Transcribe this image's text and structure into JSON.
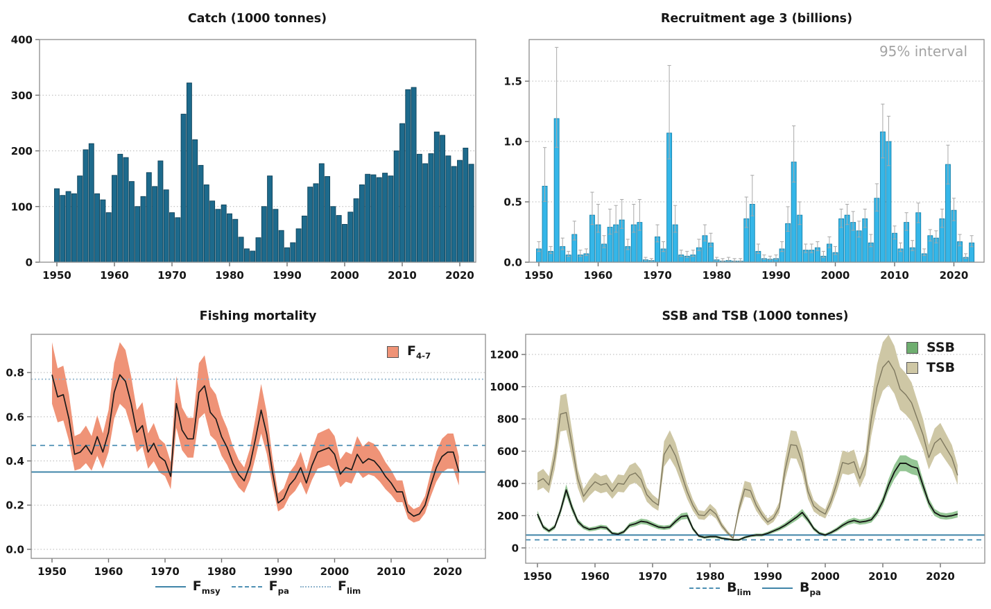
{
  "colors": {
    "catch_bar": "#1d6a8c",
    "catch_edge": "#0f4259",
    "rec_bar": "#35b6e8",
    "rec_edge": "#1583ad",
    "whisker": "#a8a8a8",
    "f_band": "#ef9377",
    "black_line": "#1a1a1a",
    "ssb_band": "#95c695",
    "ssb_swatch": "#6fae70",
    "ssb_line": "#111111",
    "tsb_band": "#cec7a5",
    "tsb_line": "#7e785f",
    "tsb_swatch": "#cec7a5",
    "ref_solid": "#3f84a8",
    "ref_dashed": "#4d8fb3",
    "ref_dotted": "#8fb4cc",
    "grid": "#b5b5b5",
    "frame": "#8c8c8c",
    "tick": "#6e6e6e",
    "muted_text": "#a3a3a3"
  },
  "chart_data": [
    {
      "id": "catch",
      "type": "bar",
      "dom": "svg-catch",
      "title": "Catch (1000 tonnes)",
      "x_start_year": 1950,
      "xticks": [
        1950,
        1960,
        1970,
        1980,
        1990,
        2000,
        2010,
        2020
      ],
      "yticks": [
        0,
        100,
        200,
        300,
        400
      ],
      "ytick_labels": [
        "0",
        "100",
        "200",
        "300",
        "400"
      ],
      "ylim": [
        0,
        400
      ],
      "values": [
        132,
        120,
        127,
        123,
        155,
        202,
        213,
        123,
        112,
        89,
        156,
        194,
        188,
        145,
        100,
        118,
        161,
        136,
        182,
        130,
        89,
        80,
        266,
        322,
        220,
        174,
        139,
        110,
        95,
        103,
        87,
        77,
        45,
        24,
        20,
        44,
        100,
        155,
        95,
        57,
        26,
        35,
        60,
        83,
        135,
        141,
        177,
        154,
        100,
        84,
        68,
        90,
        114,
        139,
        158,
        157,
        152,
        160,
        155,
        200,
        249,
        310,
        314,
        194,
        177,
        195,
        234,
        228,
        191,
        172,
        183,
        205,
        176
      ]
    },
    {
      "id": "recruitment",
      "type": "bar",
      "dom": "svg-recruitment",
      "title": "Recruitment age 3 (billions)",
      "annotation": "95% interval",
      "x_start_year": 1950,
      "xticks": [
        1950,
        1960,
        1970,
        1980,
        1990,
        2000,
        2010,
        2020
      ],
      "yticks": [
        0,
        0.5,
        1.0,
        1.5
      ],
      "ytick_labels": [
        "0.0",
        "0.5",
        "1.0",
        "1.5"
      ],
      "ylim": [
        0,
        1.845
      ],
      "values": [
        0.11,
        0.63,
        0.09,
        1.19,
        0.13,
        0.06,
        0.23,
        0.06,
        0.07,
        0.39,
        0.31,
        0.15,
        0.29,
        0.31,
        0.35,
        0.13,
        0.31,
        0.33,
        0.02,
        0.015,
        0.21,
        0.11,
        1.07,
        0.31,
        0.06,
        0.05,
        0.06,
        0.12,
        0.22,
        0.16,
        0.02,
        0.01,
        0.015,
        0.01,
        0.01,
        0.36,
        0.48,
        0.09,
        0.03,
        0.025,
        0.03,
        0.11,
        0.32,
        0.83,
        0.39,
        0.1,
        0.1,
        0.12,
        0.05,
        0.15,
        0.08,
        0.36,
        0.39,
        0.33,
        0.26,
        0.36,
        0.16,
        0.53,
        1.08,
        1.0,
        0.24,
        0.11,
        0.33,
        0.12,
        0.41,
        0.07,
        0.22,
        0.2,
        0.36,
        0.81,
        0.43,
        0.17,
        0.04,
        0.16
      ],
      "upper_ci": [
        0.17,
        0.95,
        0.13,
        1.78,
        0.2,
        0.09,
        0.34,
        0.1,
        0.11,
        0.58,
        0.48,
        0.22,
        0.44,
        0.47,
        0.52,
        0.19,
        0.48,
        0.52,
        0.04,
        0.03,
        0.31,
        0.17,
        1.63,
        0.47,
        0.1,
        0.09,
        0.1,
        0.19,
        0.31,
        0.24,
        0.04,
        0.03,
        0.04,
        0.03,
        0.03,
        0.54,
        0.72,
        0.15,
        0.06,
        0.05,
        0.06,
        0.17,
        0.46,
        1.13,
        0.5,
        0.15,
        0.15,
        0.17,
        0.09,
        0.21,
        0.13,
        0.44,
        0.48,
        0.42,
        0.34,
        0.44,
        0.23,
        0.65,
        1.31,
        1.21,
        0.3,
        0.16,
        0.41,
        0.18,
        0.49,
        0.11,
        0.27,
        0.26,
        0.44,
        0.97,
        0.53,
        0.23,
        0.07,
        0.22
      ],
      "lower_ci_factor": 0.8
    },
    {
      "id": "fishing-mortality",
      "type": "ribbon",
      "dom": "svg-fishing",
      "title": "Fishing mortality",
      "x_start_year": 1950,
      "xticks": [
        1950,
        1960,
        1970,
        1980,
        1990,
        2000,
        2010,
        2020
      ],
      "yticks": [
        0,
        0.2,
        0.4,
        0.6,
        0.8
      ],
      "ytick_labels": [
        "0.0",
        "0.2",
        "0.4",
        "0.6",
        "0.8"
      ],
      "ylim": [
        -0.041,
        0.973
      ],
      "series": [
        {
          "name": "F_4-7",
          "values": [
            0.79,
            0.69,
            0.7,
            0.59,
            0.43,
            0.44,
            0.47,
            0.43,
            0.51,
            0.44,
            0.53,
            0.71,
            0.79,
            0.76,
            0.66,
            0.53,
            0.56,
            0.44,
            0.48,
            0.42,
            0.4,
            0.33,
            0.66,
            0.54,
            0.5,
            0.5,
            0.71,
            0.74,
            0.62,
            0.59,
            0.51,
            0.46,
            0.39,
            0.34,
            0.31,
            0.38,
            0.5,
            0.63,
            0.52,
            0.35,
            0.21,
            0.23,
            0.29,
            0.32,
            0.37,
            0.3,
            0.38,
            0.44,
            0.45,
            0.46,
            0.43,
            0.34,
            0.37,
            0.36,
            0.43,
            0.39,
            0.41,
            0.4,
            0.37,
            0.33,
            0.3,
            0.26,
            0.26,
            0.17,
            0.15,
            0.16,
            0.2,
            0.29,
            0.37,
            0.42,
            0.44,
            0.44,
            0.35
          ],
          "band_up_mul": 1.18,
          "band_up_add": 0.005,
          "band_lo_mul": 0.84,
          "band_lo_add": -0.005,
          "band_color_key": "f_band",
          "line_color_key": "black_line",
          "line_w": 1.7
        }
      ],
      "reflines": [
        {
          "label_main": "F",
          "label_sub": "msy",
          "value": 0.35,
          "style": "solid"
        },
        {
          "label_main": "F",
          "label_sub": "pa",
          "value": 0.47,
          "style": "dashed"
        },
        {
          "label_main": "F",
          "label_sub": "lim",
          "value": 0.77,
          "style": "dotted"
        }
      ],
      "series_legend": {
        "main": "F",
        "sub": "4-7",
        "swatch_key": "f_band"
      }
    },
    {
      "id": "ssb-tsb",
      "type": "ribbon",
      "dom": "svg-biomass",
      "title": "SSB and TSB (1000 tonnes)",
      "x_start_year": 1950,
      "xticks": [
        1950,
        1960,
        1970,
        1980,
        1990,
        2000,
        2010,
        2020
      ],
      "yticks": [
        0,
        200,
        400,
        600,
        800,
        1000,
        1200
      ],
      "ytick_labels": [
        "0",
        "200",
        "400",
        "600",
        "800",
        "1000",
        "1200"
      ],
      "ylim": [
        -95,
        1325
      ],
      "series": [
        {
          "name": "TSB",
          "values": [
            410,
            430,
            390,
            560,
            830,
            840,
            640,
            430,
            320,
            370,
            410,
            390,
            400,
            350,
            400,
            395,
            450,
            465,
            425,
            330,
            290,
            265,
            580,
            640,
            570,
            460,
            350,
            265,
            205,
            200,
            240,
            210,
            140,
            95,
            60,
            240,
            365,
            355,
            265,
            205,
            160,
            185,
            250,
            480,
            640,
            635,
            530,
            350,
            260,
            230,
            210,
            290,
            400,
            530,
            520,
            535,
            430,
            520,
            800,
            1000,
            1120,
            1160,
            1100,
            985,
            950,
            900,
            800,
            700,
            560,
            650,
            680,
            620,
            560,
            450
          ],
          "band_up_mul": 1.14,
          "band_up_add": 0,
          "band_lo_mul": 0.87,
          "band_lo_add": 0,
          "band_color_key": "tsb_band",
          "line_color_key": "tsb_line",
          "line_w": 1.4
        },
        {
          "name": "SSB",
          "values": [
            210,
            130,
            105,
            130,
            230,
            360,
            250,
            165,
            130,
            115,
            120,
            130,
            125,
            90,
            85,
            100,
            140,
            150,
            165,
            160,
            145,
            130,
            125,
            130,
            165,
            195,
            200,
            120,
            75,
            65,
            70,
            70,
            60,
            55,
            50,
            50,
            65,
            75,
            80,
            80,
            90,
            105,
            120,
            140,
            165,
            190,
            220,
            175,
            120,
            90,
            80,
            95,
            115,
            140,
            160,
            170,
            160,
            165,
            175,
            220,
            290,
            390,
            470,
            525,
            525,
            505,
            495,
            385,
            280,
            220,
            200,
            195,
            200,
            210
          ],
          "band_up_mul": 1.09,
          "band_up_add": 2,
          "band_lo_mul": 0.91,
          "band_lo_add": -2,
          "band_color_key": "ssb_band",
          "line_color_key": "ssb_line",
          "line_w": 1.8
        }
      ],
      "reflines": [
        {
          "label_main": "B",
          "label_sub": "lim",
          "value": 50,
          "style": "dashed"
        },
        {
          "label_main": "B",
          "label_sub": "pa",
          "value": 80,
          "style": "solid"
        }
      ],
      "series_legend": [
        {
          "label": "SSB",
          "swatch_key": "ssb_swatch"
        },
        {
          "label": "TSB",
          "swatch_key": "tsb_swatch"
        }
      ]
    }
  ]
}
